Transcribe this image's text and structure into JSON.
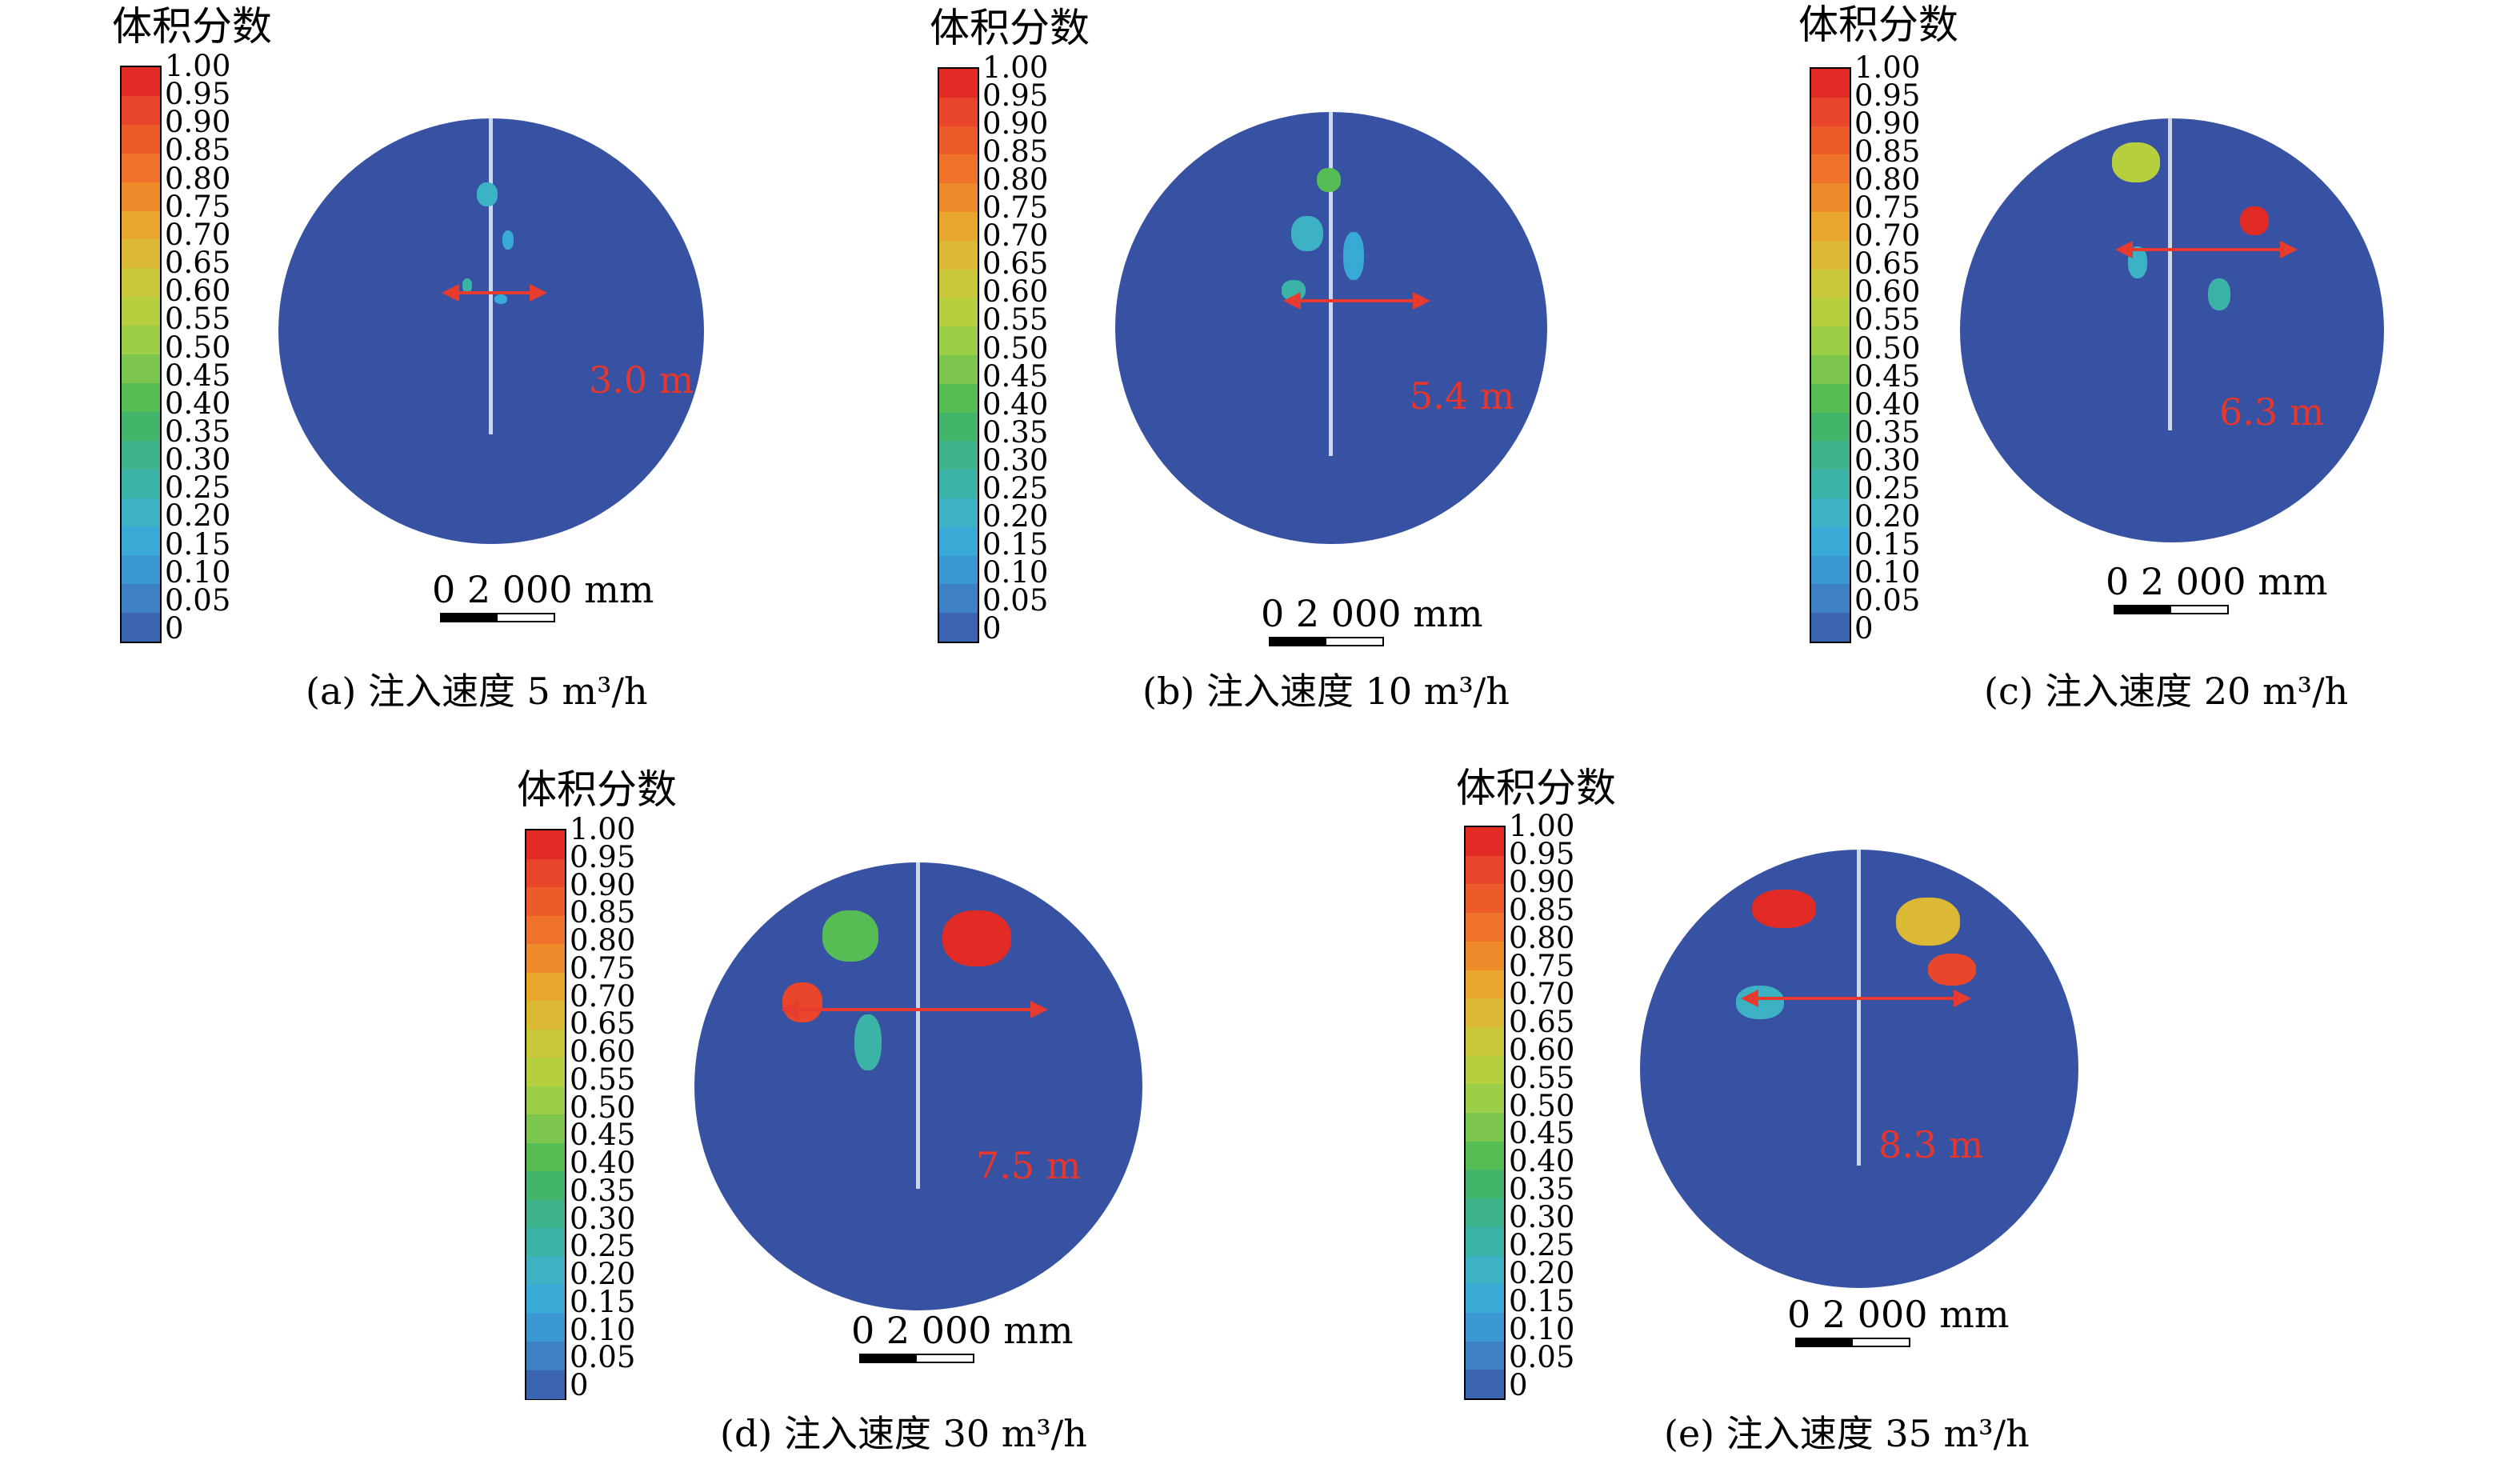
{
  "colorbar": {
    "title": "体积分数",
    "ticks": [
      "1.00",
      "0.95",
      "0.90",
      "0.85",
      "0.80",
      "0.75",
      "0.70",
      "0.65",
      "0.60",
      "0.55",
      "0.50",
      "0.45",
      "0.40",
      "0.35",
      "0.30",
      "0.25",
      "0.20",
      "0.15",
      "0.10",
      "0.05",
      "0"
    ],
    "colors": [
      "#e22b25",
      "#e9452a",
      "#ee5b2b",
      "#ef732a",
      "#ee8a2a",
      "#e8a62c",
      "#dcb934",
      "#cac83a",
      "#b6cf3e",
      "#9ccf47",
      "#7cc64d",
      "#56bd54",
      "#43b56b",
      "#3fb38c",
      "#3cb3a7",
      "#3cb2c4",
      "#39aad6",
      "#3b98d3",
      "#3d80c5",
      "#3a64b1"
    ],
    "colors_note": ""
  },
  "panels": [
    {
      "id": "a",
      "caption": "(a) 注入速度 5 m³/h",
      "distance": "3.0 m",
      "scale_label": "0    2 000 mm"
    },
    {
      "id": "b",
      "caption": "(b) 注入速度 10 m³/h",
      "distance": "5.4 m",
      "scale_label": "0    2 000 mm"
    },
    {
      "id": "c",
      "caption": "(c) 注入速度 20 m³/h",
      "distance": "6.3 m",
      "scale_label": "0    2 000 mm"
    },
    {
      "id": "d",
      "caption": "(d) 注入速度 30 m³/h",
      "distance": "7.5 m",
      "scale_label": "0    2 000 mm"
    },
    {
      "id": "e",
      "caption": "(e) 注入速度 35 m³/h",
      "distance": "8.3 m",
      "scale_label": "0    2 000 mm"
    }
  ]
}
